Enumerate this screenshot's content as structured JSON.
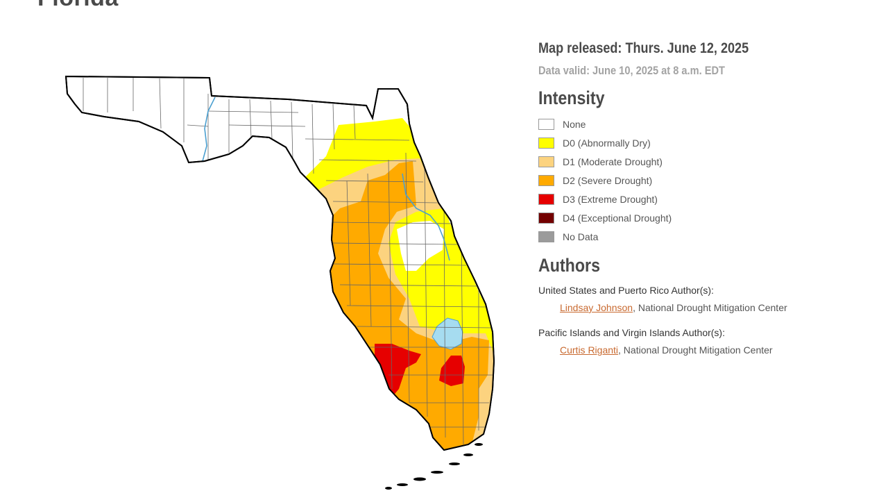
{
  "page": {
    "title": "Florida"
  },
  "map": {
    "release": "Map released: Thurs. June 12, 2025",
    "valid": "Data valid: June 10, 2025 at 8 a.m. EDT"
  },
  "legend": {
    "heading": "Intensity",
    "items": [
      {
        "label": "None",
        "color": "#ffffff"
      },
      {
        "label": "D0 (Abnormally Dry)",
        "color": "#ffff00"
      },
      {
        "label": "D1 (Moderate Drought)",
        "color": "#fcd37f"
      },
      {
        "label": "D2 (Severe Drought)",
        "color": "#ffaa00"
      },
      {
        "label": "D3 (Extreme Drought)",
        "color": "#e60000"
      },
      {
        "label": "D4 (Exceptional Drought)",
        "color": "#730000"
      },
      {
        "label": "No Data",
        "color": "#9b9b9b"
      }
    ]
  },
  "authors": {
    "heading": "Authors",
    "groups": [
      {
        "label": "United States and Puerto Rico Author(s):",
        "name": "Lindsay Johnson",
        "org": ", National Drought Mitigation Center"
      },
      {
        "label": "Pacific Islands and Virgin Islands Author(s):",
        "name": "Curtis Riganti",
        "org": ", National Drought Mitigation Center"
      }
    ]
  },
  "colors": {
    "water": "#a6dcf0",
    "river": "#4a9fd0",
    "link": "#c8692f",
    "outline": "#000000",
    "county": "#666666"
  }
}
